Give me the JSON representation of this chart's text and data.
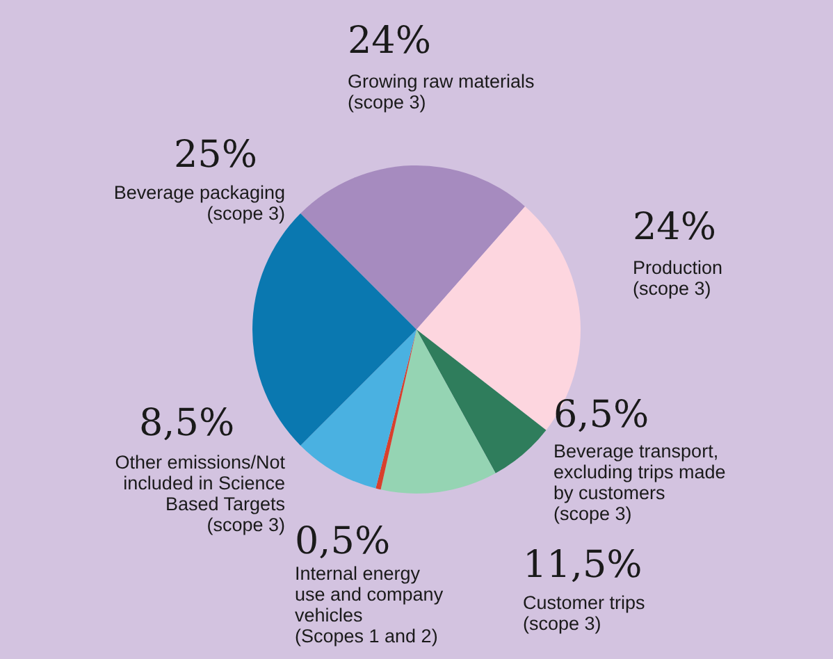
{
  "chart_data": {
    "type": "pie",
    "categories": [
      "Growing raw materials (scope 3)",
      "Production (scope 3)",
      "Beverage transport, excluding trips made by customers (scope 3)",
      "Customer trips (scope 3)",
      "Internal energy use and company vehicles (Scopes 1 and 2)",
      "Other emissions/Not included in Science Based Targets (scope 3)",
      "Beverage packaging (scope 3)"
    ],
    "values": [
      24,
      24,
      6.5,
      11.5,
      0.5,
      8.5,
      25
    ],
    "value_labels": [
      "24%",
      "24%",
      "6,5%",
      "11,5%",
      "0,5%",
      "8,5%",
      "25%"
    ],
    "colors": [
      "#a68bbf",
      "#fdd6df",
      "#2f7d5c",
      "#95d4b3",
      "#d8402c",
      "#4ab1e1",
      "#0a78b0"
    ]
  }
}
